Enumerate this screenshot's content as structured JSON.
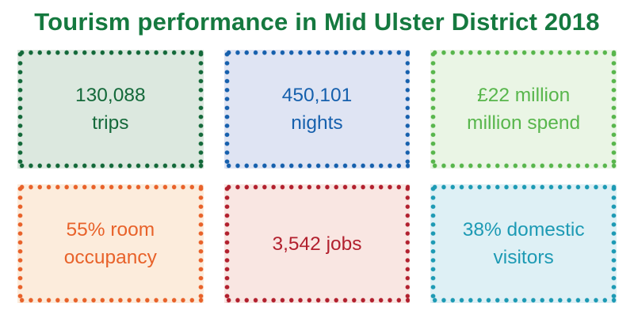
{
  "page": {
    "title": "Tourism performance in Mid Ulster District 2018",
    "title_color": "#15793f",
    "background": "#ffffff"
  },
  "tiles": [
    {
      "id": "trips",
      "line1": "130,088",
      "line2": "trips",
      "color": "#14693a",
      "fill": "#dce8df"
    },
    {
      "id": "nights",
      "line1": "450,101",
      "line2": "nights",
      "color": "#1660ad",
      "fill": "#dfe4f3"
    },
    {
      "id": "spend",
      "line1": "£22 million",
      "line2": "million spend",
      "color": "#58b64c",
      "fill": "#eaf5e5"
    },
    {
      "id": "room-occupancy",
      "line1": "55% room",
      "line2": "occupancy",
      "color": "#e8622a",
      "fill": "#fcecdc"
    },
    {
      "id": "jobs",
      "line1": "3,542 jobs",
      "line2": "",
      "color": "#b2202e",
      "fill": "#f9e6e2"
    },
    {
      "id": "domestic-visitors",
      "line1": "38% domestic",
      "line2": "visitors",
      "color": "#1d9ab4",
      "fill": "#def0f5"
    }
  ],
  "chart_data": {
    "type": "table",
    "title": "Tourism performance in Mid Ulster District 2018",
    "metrics": [
      {
        "label": "trips",
        "value": "130,088"
      },
      {
        "label": "nights",
        "value": "450,101"
      },
      {
        "label": "million spend",
        "value": "£22 million"
      },
      {
        "label": "room occupancy",
        "value": "55%"
      },
      {
        "label": "jobs",
        "value": "3,542"
      },
      {
        "label": "domestic visitors",
        "value": "38%"
      }
    ]
  }
}
